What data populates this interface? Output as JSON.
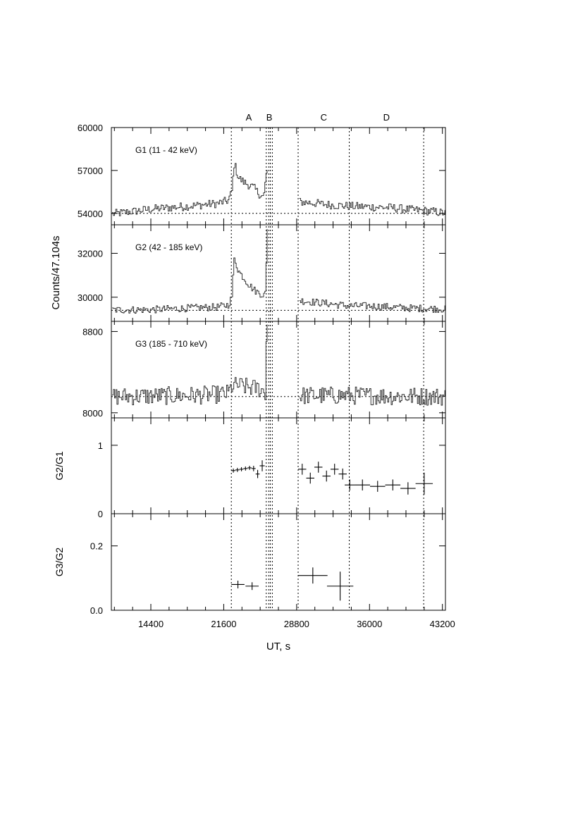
{
  "chart_data": {
    "type": "line",
    "xlabel": "UT, s",
    "ylabel": "Counts/47.104s",
    "xlim": [
      10500,
      43500
    ],
    "x_ticks": [
      14400,
      21600,
      28800,
      36000,
      43200
    ],
    "x_tick_labels": [
      "14400",
      "21600",
      "28800",
      "36000",
      "43200"
    ],
    "intervals": [
      {
        "label": "A",
        "x_start": 22350,
        "x_end": 25800
      },
      {
        "label": "B",
        "x_start": 25800,
        "x_end": 26400
      },
      {
        "label": "C",
        "x_start": 28950,
        "x_end": 34000
      },
      {
        "label": "D",
        "x_start": 34000,
        "x_end": 41350
      }
    ],
    "interval_marker_x": [
      22350,
      25800,
      26050,
      26200,
      26400,
      28950,
      34000,
      41350
    ],
    "gaps": [
      [
        25950,
        29000
      ]
    ],
    "panels": [
      {
        "name": "G1",
        "label": "G1 (11 - 42 keV)",
        "ylim": [
          53200,
          60000
        ],
        "y_ticks": [
          54000,
          57000,
          60000
        ],
        "y_tick_labels": [
          "54000",
          "57000",
          "60000"
        ],
        "baseline": 54000,
        "curve": {
          "x": [
            10500,
            14400,
            18000,
            21000,
            22000,
            22350,
            22600,
            23000,
            23500,
            24000,
            24500,
            25000,
            25500,
            25800,
            29000,
            30000,
            32000,
            34000,
            36000,
            38000,
            40000,
            42000,
            43500
          ],
          "y": [
            53950,
            54300,
            54500,
            54700,
            54900,
            55500,
            57500,
            56500,
            56200,
            56000,
            55800,
            55400,
            55100,
            57000,
            54800,
            54750,
            54600,
            54500,
            54450,
            54400,
            54250,
            54150,
            54000
          ]
        },
        "noise": 300
      },
      {
        "name": "G2",
        "label": "G2 (42 - 185 keV)",
        "ylim": [
          28900,
          33300
        ],
        "y_ticks": [
          30000,
          32000
        ],
        "y_tick_labels": [
          "30000",
          "32000"
        ],
        "baseline": 29400,
        "curve": {
          "x": [
            10500,
            14400,
            18000,
            21000,
            22000,
            22350,
            22600,
            23000,
            23500,
            24000,
            24500,
            25000,
            25500,
            25750,
            25800,
            29000,
            30000,
            32000,
            34000,
            36000,
            38000,
            40000,
            42000,
            43500
          ],
          "y": [
            29420,
            29430,
            29500,
            29550,
            29650,
            30000,
            31800,
            31200,
            30900,
            30600,
            30350,
            30200,
            30100,
            30200,
            33300,
            29850,
            29800,
            29700,
            29600,
            29600,
            29550,
            29500,
            29480,
            29460
          ]
        },
        "noise": 170
      },
      {
        "name": "G3",
        "label": "G3 (185 - 710 keV)",
        "ylim": [
          7950,
          8900
        ],
        "y_ticks": [
          8000,
          8800
        ],
        "y_tick_labels": [
          "8000",
          "8800"
        ],
        "baseline": 8160,
        "curve": {
          "x": [
            10500,
            14400,
            18000,
            21000,
            22000,
            22350,
            23000,
            24000,
            25000,
            25700,
            25800,
            29000,
            30000,
            34000,
            38000,
            43500
          ],
          "y": [
            8160,
            8165,
            8170,
            8180,
            8190,
            8260,
            8270,
            8250,
            8240,
            8200,
            8900,
            8170,
            8170,
            8170,
            8165,
            8160
          ]
        },
        "noise": 90
      }
    ],
    "ratio_panels": [
      {
        "name": "G2/G1",
        "ylabel": "G2/G1",
        "ylim": [
          0,
          1.4
        ],
        "y_ticks": [
          0,
          1
        ],
        "y_tick_labels": [
          "0",
          "1"
        ],
        "points": [
          {
            "x": 22550,
            "y": 0.63,
            "xerr": 200,
            "yerr": 0.03
          },
          {
            "x": 22950,
            "y": 0.64,
            "xerr": 200,
            "yerr": 0.03
          },
          {
            "x": 23350,
            "y": 0.65,
            "xerr": 200,
            "yerr": 0.03
          },
          {
            "x": 23750,
            "y": 0.66,
            "xerr": 200,
            "yerr": 0.03
          },
          {
            "x": 24150,
            "y": 0.67,
            "xerr": 200,
            "yerr": 0.03
          },
          {
            "x": 24550,
            "y": 0.66,
            "xerr": 200,
            "yerr": 0.04
          },
          {
            "x": 24950,
            "y": 0.58,
            "xerr": 200,
            "yerr": 0.06
          },
          {
            "x": 25400,
            "y": 0.7,
            "xerr": 250,
            "yerr": 0.08
          },
          {
            "x": 29350,
            "y": 0.65,
            "xerr": 400,
            "yerr": 0.08
          },
          {
            "x": 30150,
            "y": 0.52,
            "xerr": 400,
            "yerr": 0.08
          },
          {
            "x": 30950,
            "y": 0.68,
            "xerr": 400,
            "yerr": 0.08
          },
          {
            "x": 31750,
            "y": 0.55,
            "xerr": 400,
            "yerr": 0.08
          },
          {
            "x": 32550,
            "y": 0.65,
            "xerr": 400,
            "yerr": 0.08
          },
          {
            "x": 33350,
            "y": 0.58,
            "xerr": 400,
            "yerr": 0.08
          },
          {
            "x": 34050,
            "y": 0.42,
            "xerr": 500,
            "yerr": 0.08
          },
          {
            "x": 35300,
            "y": 0.42,
            "xerr": 750,
            "yerr": 0.08
          },
          {
            "x": 36800,
            "y": 0.4,
            "xerr": 750,
            "yerr": 0.08
          },
          {
            "x": 38300,
            "y": 0.42,
            "xerr": 750,
            "yerr": 0.08
          },
          {
            "x": 39800,
            "y": 0.37,
            "xerr": 750,
            "yerr": 0.09
          },
          {
            "x": 41400,
            "y": 0.44,
            "xerr": 850,
            "yerr": 0.16
          }
        ]
      },
      {
        "name": "G3/G2",
        "ylabel": "G3/G2",
        "ylim": [
          0,
          0.3
        ],
        "y_ticks": [
          0,
          0.2
        ],
        "y_tick_labels": [
          "0.0",
          "0.2"
        ],
        "points": [
          {
            "x": 23000,
            "y": 0.08,
            "xerr": 650,
            "yerr": 0.012
          },
          {
            "x": 24400,
            "y": 0.075,
            "xerr": 650,
            "yerr": 0.012
          },
          {
            "x": 30400,
            "y": 0.108,
            "xerr": 1450,
            "yerr": 0.025
          },
          {
            "x": 33100,
            "y": 0.075,
            "xerr": 1300,
            "yerr": 0.045
          }
        ]
      }
    ]
  }
}
